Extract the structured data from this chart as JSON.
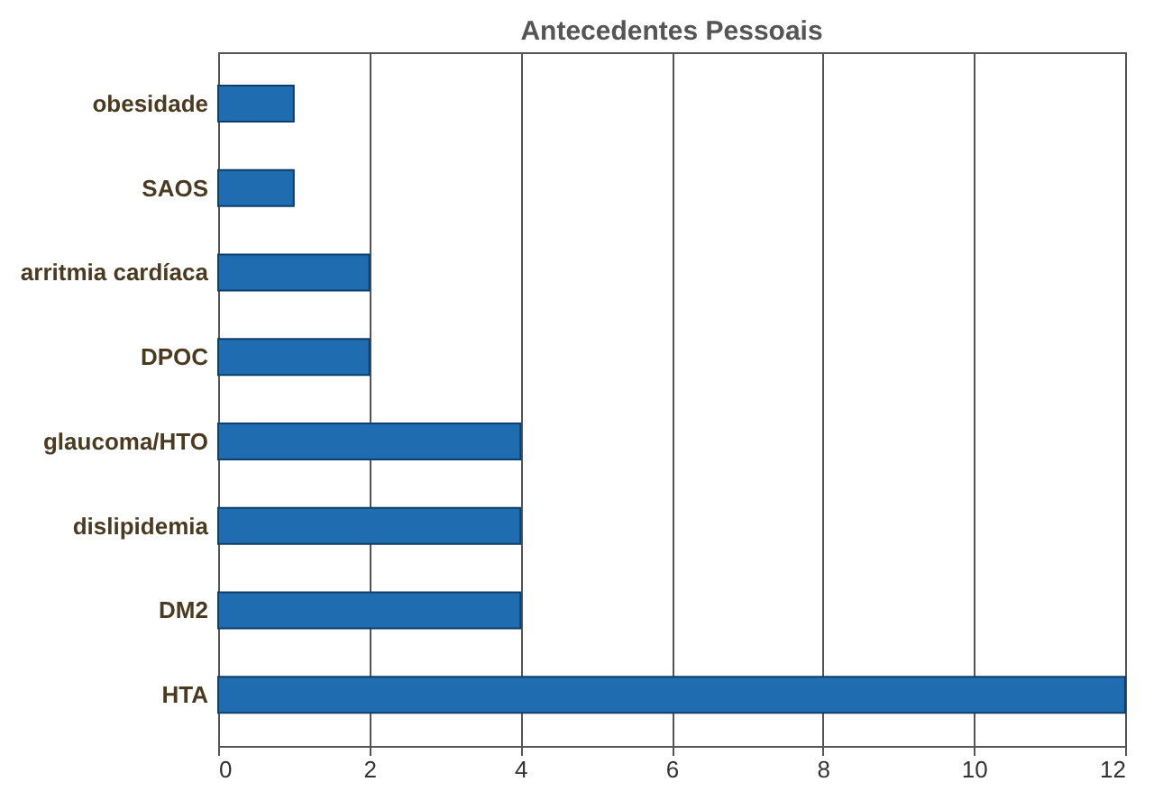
{
  "chart_data": {
    "type": "bar",
    "orientation": "horizontal",
    "title": "Antecedentes Pessoais",
    "categories": [
      "obesidade",
      "SAOS",
      "arritmia cardíaca",
      "DPOC",
      "glaucoma/HTO",
      "dislipidemia",
      "DM2",
      "HTA"
    ],
    "values": [
      1,
      1,
      2,
      2,
      4,
      4,
      4,
      12
    ],
    "color": "#1f6db0",
    "xlim": [
      0,
      12
    ],
    "xticks": [
      0,
      2,
      4,
      6,
      8,
      10,
      12
    ],
    "grid": "x"
  }
}
